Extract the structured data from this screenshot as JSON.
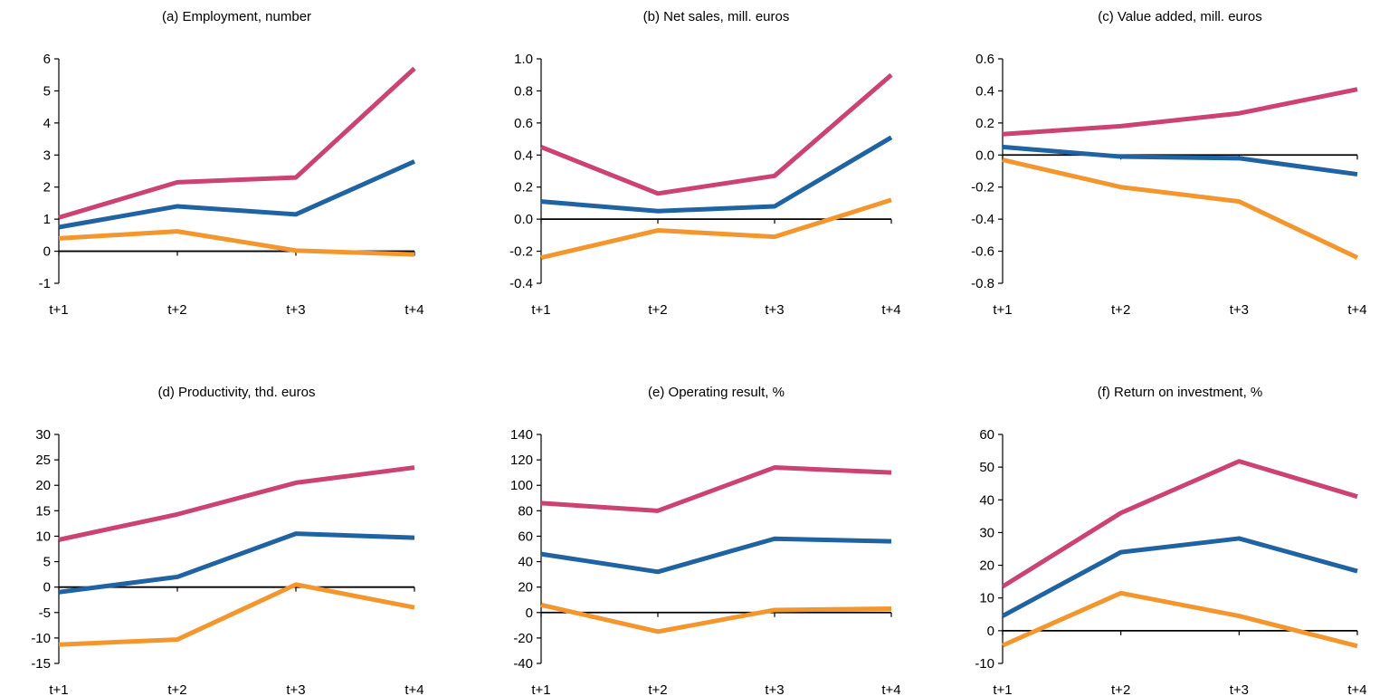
{
  "colors": {
    "high": "#CC4272",
    "mid": "#1F63A2",
    "low": "#F3962D",
    "axis": "#000000"
  },
  "chart_data": [
    {
      "type": "line",
      "title": "(a) Employment, number",
      "categories": [
        "t+1",
        "t+2",
        "t+3",
        "t+4"
      ],
      "yticks": [
        "6",
        "5",
        "4",
        "3",
        "2",
        "1",
        "0",
        "-1"
      ],
      "ylim": [
        -1,
        6
      ],
      "series": [
        {
          "color": "high",
          "values": [
            1.05,
            2.15,
            2.3,
            5.7
          ]
        },
        {
          "color": "mid",
          "values": [
            0.75,
            1.4,
            1.15,
            2.8
          ]
        },
        {
          "color": "low",
          "values": [
            0.4,
            0.62,
            0.02,
            -0.1
          ]
        }
      ]
    },
    {
      "type": "line",
      "title": "(b) Net sales, mill. euros",
      "categories": [
        "t+1",
        "t+2",
        "t+3",
        "t+4"
      ],
      "yticks": [
        "1.0",
        "0.8",
        "0.6",
        "0.4",
        "0.2",
        "0.0",
        "-0.2",
        "-0.4"
      ],
      "ylim": [
        -0.4,
        1.0
      ],
      "series": [
        {
          "color": "high",
          "values": [
            0.45,
            0.16,
            0.27,
            0.9
          ]
        },
        {
          "color": "mid",
          "values": [
            0.11,
            0.05,
            0.08,
            0.51
          ]
        },
        {
          "color": "low",
          "values": [
            -0.24,
            -0.07,
            -0.11,
            0.12
          ]
        }
      ]
    },
    {
      "type": "line",
      "title": "(c) Value added, mill. euros",
      "categories": [
        "t+1",
        "t+2",
        "t+3",
        "t+4"
      ],
      "yticks": [
        "0.6",
        "0.4",
        "0.2",
        "0.0",
        "-0.2",
        "-0.4",
        "-0.6",
        "-0.8"
      ],
      "ylim": [
        -0.8,
        0.6
      ],
      "series": [
        {
          "color": "high",
          "values": [
            0.13,
            0.18,
            0.26,
            0.41
          ]
        },
        {
          "color": "mid",
          "values": [
            0.05,
            -0.01,
            -0.02,
            -0.12
          ]
        },
        {
          "color": "low",
          "values": [
            -0.03,
            -0.2,
            -0.29,
            -0.64
          ]
        }
      ]
    },
    {
      "type": "line",
      "title": "(d) Productivity, thd. euros",
      "categories": [
        "t+1",
        "t+2",
        "t+3",
        "t+4"
      ],
      "yticks": [
        "30",
        "25",
        "20",
        "15",
        "10",
        "5",
        "0",
        "-5",
        "-10",
        "-15"
      ],
      "ylim": [
        -15,
        30
      ],
      "series": [
        {
          "color": "high",
          "values": [
            9.3,
            14.3,
            20.5,
            23.5
          ]
        },
        {
          "color": "mid",
          "values": [
            -1,
            2,
            10.5,
            9.7
          ]
        },
        {
          "color": "low",
          "values": [
            -11.3,
            -10.3,
            0.5,
            -4
          ]
        }
      ]
    },
    {
      "type": "line",
      "title": "(e) Operating result, %",
      "categories": [
        "t+1",
        "t+2",
        "t+3",
        "t+4"
      ],
      "yticks": [
        "140",
        "120",
        "100",
        "80",
        "60",
        "40",
        "20",
        "0",
        "-20",
        "-40"
      ],
      "ylim": [
        -40,
        140
      ],
      "series": [
        {
          "color": "high",
          "values": [
            86,
            80,
            114,
            110
          ]
        },
        {
          "color": "mid",
          "values": [
            46,
            32,
            58,
            56
          ]
        },
        {
          "color": "low",
          "values": [
            6,
            -15,
            2,
            3
          ]
        }
      ]
    },
    {
      "type": "line",
      "title": "(f) Return on investment, %",
      "categories": [
        "t+1",
        "t+2",
        "t+3",
        "t+4"
      ],
      "yticks": [
        "60",
        "50",
        "40",
        "30",
        "20",
        "10",
        "0",
        "-10"
      ],
      "ylim": [
        -10,
        60
      ],
      "series": [
        {
          "color": "high",
          "values": [
            13.5,
            36,
            51.8,
            41
          ]
        },
        {
          "color": "mid",
          "values": [
            4.5,
            24,
            28.2,
            18.2
          ]
        },
        {
          "color": "low",
          "values": [
            -4.5,
            11.5,
            4.5,
            -4.7
          ]
        }
      ]
    }
  ]
}
